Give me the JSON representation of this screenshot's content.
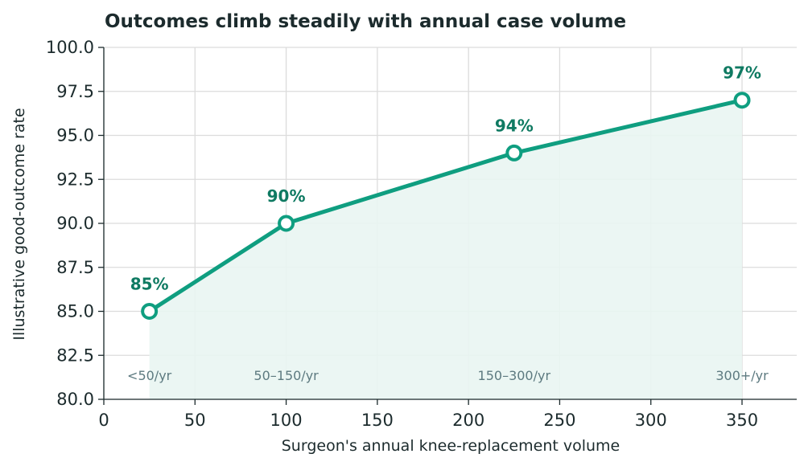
{
  "chart_data": {
    "type": "line",
    "title": "Outcomes climb steadily with annual case volume",
    "xlabel": "Surgeon's annual knee-replacement volume",
    "ylabel": "Illustrative good-outcome rate",
    "xlim": [
      0,
      380
    ],
    "ylim": [
      80,
      100
    ],
    "xticks": [
      "0",
      "50",
      "100",
      "150",
      "200",
      "250",
      "300",
      "350"
    ],
    "yticks": [
      "80.0",
      "82.5",
      "85.0",
      "87.5",
      "90.0",
      "92.5",
      "95.0",
      "97.5",
      "100.0"
    ],
    "grid": true,
    "area_fill": true,
    "series": [
      {
        "points": [
          {
            "x": 25,
            "y": 85,
            "label": "85%",
            "bucket": "<50/yr"
          },
          {
            "x": 100,
            "y": 90,
            "label": "90%",
            "bucket": "50–150/yr"
          },
          {
            "x": 225,
            "y": 94,
            "label": "94%",
            "bucket": "150–300/yr"
          },
          {
            "x": 350,
            "y": 97,
            "label": "97%",
            "bucket": "300+/yr"
          }
        ]
      }
    ],
    "colors": {
      "line": "#0f9e80",
      "fill": "#e9f5f2",
      "label": "#0f7a62",
      "bucket": "#5d7a80"
    }
  }
}
